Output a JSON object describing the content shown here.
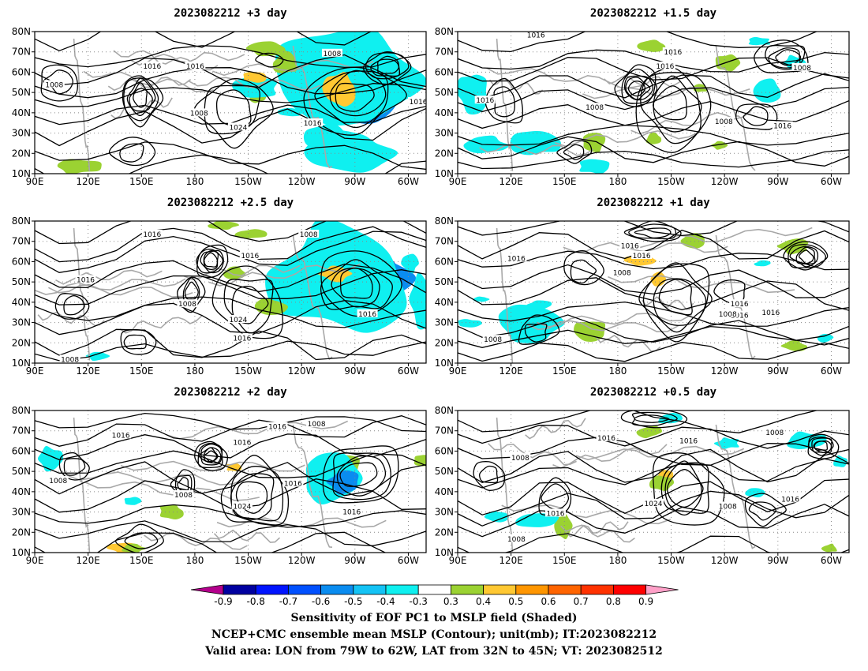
{
  "chart_data": {
    "type": "heatmap",
    "figure": "GrADS multi-panel map",
    "panels": [
      {
        "title": "2023082212 +3 day",
        "contour_labels": [
          "1016",
          "1008",
          "1008",
          "1016",
          "1008",
          "1024",
          "1016",
          "1016"
        ]
      },
      {
        "title": "2023082212 +1.5 day",
        "contour_labels": [
          "1016",
          "1016",
          "1016",
          "1008",
          "1016",
          "1008",
          "1008",
          "1016"
        ]
      },
      {
        "title": "2023082212 +2.5 day",
        "contour_labels": [
          "1016",
          "1008",
          "1016",
          "1016",
          "1008",
          "1024",
          "1016",
          "1016",
          "1008"
        ]
      },
      {
        "title": "2023082212 +1 day",
        "contour_labels": [
          "1016",
          "1016",
          "1016",
          "1008",
          "1016",
          "1016",
          "1008",
          "1016",
          "1008"
        ]
      },
      {
        "title": "2023082212 +2 day",
        "contour_labels": [
          "1016",
          "1016",
          "1008",
          "1016",
          "1008",
          "1008",
          "1024",
          "1016",
          "1016"
        ]
      },
      {
        "title": "2023082212 +0.5 day",
        "contour_labels": [
          "1016",
          "1016",
          "1008",
          "1008",
          "1024",
          "1008",
          "1016",
          "1016",
          "1008"
        ]
      }
    ],
    "lon_ticks": [
      "90E",
      "120E",
      "150E",
      "180",
      "150W",
      "120W",
      "90W",
      "60W"
    ],
    "lat_ticks": [
      "10N",
      "20N",
      "30N",
      "40N",
      "50N",
      "60N",
      "70N",
      "80N"
    ],
    "lon_range": [
      90,
      310
    ],
    "lat_range": [
      10,
      80
    ],
    "colorbar": {
      "labels": [
        "-0.9",
        "-0.8",
        "-0.7",
        "-0.6",
        "-0.5",
        "-0.4",
        "-0.3",
        "0.3",
        "0.4",
        "0.5",
        "0.6",
        "0.7",
        "0.8",
        "0.9"
      ],
      "colors": [
        "#b4008c",
        "#0000a0",
        "#0014ff",
        "#0050ff",
        "#0a8cf0",
        "#14c3f5",
        "#0ff0f0",
        "#ffffff",
        "#9bd232",
        "#ffc832",
        "#ff9600",
        "#ff6400",
        "#ff3200",
        "#ff0000",
        "#ffa0c8"
      ]
    },
    "captions": [
      "Sensitivity of EOF PC1 to MSLP field (Shaded)",
      "NCEP+CMC ensemble mean MSLP (Contour); unit(mb); IT:2023082212",
      "Valid area: LON from 79W to 62W, LAT from 32N to 45N; VT: 2023082512"
    ]
  }
}
